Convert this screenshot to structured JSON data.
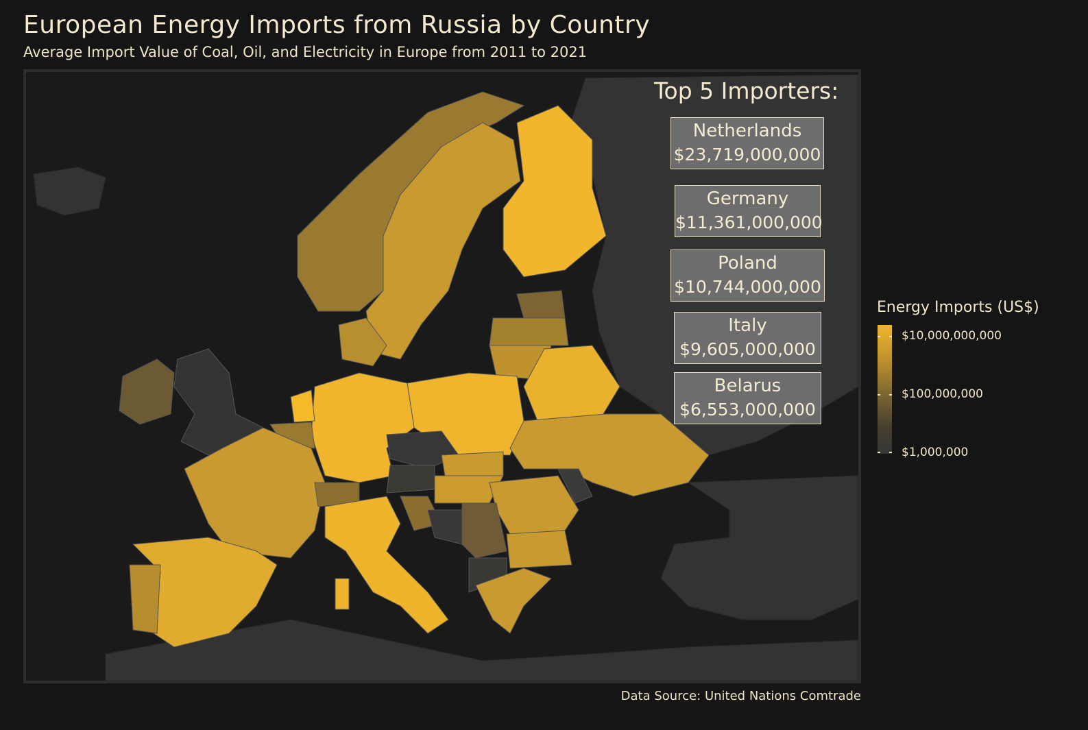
{
  "title": "European Energy Imports from Russia by Country",
  "subtitle": "Average Import Value of Coal, Oil, and Electricity in Europe from 2011 to 2021",
  "top5": {
    "heading": "Top 5 Importers:",
    "items": [
      {
        "country": "Netherlands",
        "value": "$23,719,000,000"
      },
      {
        "country": "Germany",
        "value": "$11,361,000,000"
      },
      {
        "country": "Poland",
        "value": "$10,744,000,000"
      },
      {
        "country": "Italy",
        "value": "$9,605,000,000"
      },
      {
        "country": "Belarus",
        "value": "$6,553,000,000"
      }
    ]
  },
  "legend": {
    "title": "Energy Imports (US$)",
    "labels": [
      "$10,000,000,000",
      "$100,000,000",
      "$1,000,000"
    ]
  },
  "source": "Data Source: United Nations Comtrade",
  "colors": {
    "background": "#151515",
    "sea": "#1a1a1a",
    "non_europe_land": "#333333",
    "highest": "#f1b62b",
    "mid": "#7a6433",
    "lowest": "#363636"
  }
}
